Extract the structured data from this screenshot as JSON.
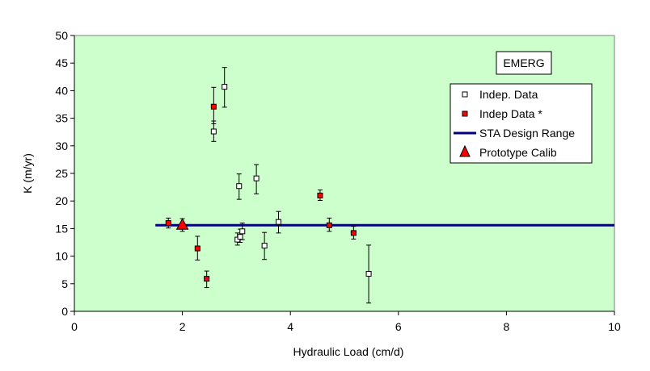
{
  "chart_data": {
    "type": "scatter",
    "title": "",
    "xlabel": "Hydraulic Load (cm/d)",
    "ylabel": "K (m/yr)",
    "xlim": [
      0,
      10
    ],
    "ylim": [
      0,
      50
    ],
    "xticks": [
      "0",
      "2",
      "4",
      "6",
      "8",
      "10"
    ],
    "yticks": [
      "0",
      "5",
      "10",
      "15",
      "20",
      "25",
      "30",
      "35",
      "40",
      "45",
      "50"
    ],
    "grid": false,
    "plot_background": "#ccffcc",
    "annotation": "EMERG",
    "legend_position": "top-right",
    "series": [
      {
        "name": "Indep. Data",
        "marker": "open-square",
        "color": "#000000",
        "points": [
          {
            "x": 2.58,
            "y": 32.6,
            "ylow": 30.8,
            "yhigh": 34.5
          },
          {
            "x": 2.78,
            "y": 40.7,
            "ylow": 37.0,
            "yhigh": 44.2
          },
          {
            "x": 3.05,
            "y": 22.7,
            "ylow": 20.3,
            "yhigh": 24.9
          },
          {
            "x": 3.37,
            "y": 24.1,
            "ylow": 21.3,
            "yhigh": 26.6
          },
          {
            "x": 3.02,
            "y": 13.0,
            "ylow": 12.0,
            "yhigh": 14.2
          },
          {
            "x": 3.07,
            "y": 13.5,
            "ylow": 12.5,
            "yhigh": 14.9
          },
          {
            "x": 3.11,
            "y": 14.5,
            "ylow": 13.0,
            "yhigh": 16.0
          },
          {
            "x": 3.52,
            "y": 11.9,
            "ylow": 9.4,
            "yhigh": 14.3
          },
          {
            "x": 3.78,
            "y": 16.2,
            "ylow": 14.2,
            "yhigh": 18.1
          },
          {
            "x": 5.45,
            "y": 6.8,
            "ylow": 1.5,
            "yhigh": 12.0
          }
        ]
      },
      {
        "name": "Indep Data *",
        "marker": "filled-square",
        "color": "#ff0000",
        "points": [
          {
            "x": 1.74,
            "y": 16.0,
            "ylow": 15.1,
            "yhigh": 16.9
          },
          {
            "x": 2.28,
            "y": 11.4,
            "ylow": 9.3,
            "yhigh": 13.6
          },
          {
            "x": 2.45,
            "y": 5.9,
            "ylow": 4.3,
            "yhigh": 7.3
          },
          {
            "x": 2.58,
            "y": 37.1,
            "ylow": 34.0,
            "yhigh": 40.6
          },
          {
            "x": 4.55,
            "y": 21.0,
            "ylow": 20.1,
            "yhigh": 22.0
          },
          {
            "x": 4.72,
            "y": 15.6,
            "ylow": 14.5,
            "yhigh": 16.9
          },
          {
            "x": 5.17,
            "y": 14.2,
            "ylow": 13.1,
            "yhigh": 15.4
          }
        ]
      },
      {
        "name": "STA Design Range",
        "marker": "line",
        "color": "#000080",
        "x": [
          1.5,
          10
        ],
        "y": [
          15.6,
          15.6
        ]
      },
      {
        "name": "Prototype Calib",
        "marker": "triangle",
        "color": "#ff0000",
        "points": [
          {
            "x": 2.0,
            "y": 15.6,
            "ylow": 14.5,
            "yhigh": 16.8
          }
        ]
      }
    ]
  }
}
